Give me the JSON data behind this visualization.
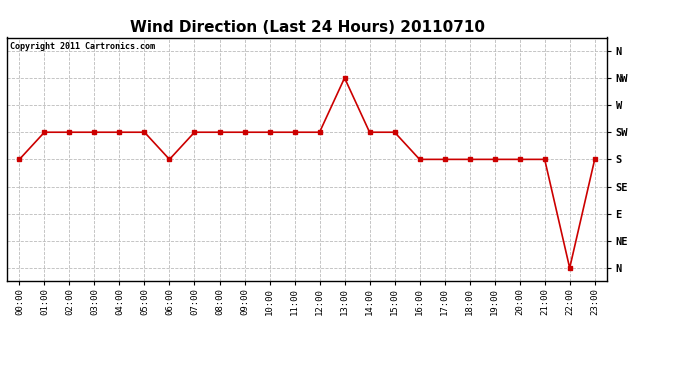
{
  "title": "Wind Direction (Last 24 Hours) 20110710",
  "copyright": "Copyright 2011 Cartronics.com",
  "background_color": "#ffffff",
  "line_color": "#cc0000",
  "grid_color": "#bbbbbb",
  "x_labels": [
    "00:00",
    "01:00",
    "02:00",
    "03:00",
    "04:00",
    "05:00",
    "06:00",
    "07:00",
    "08:00",
    "09:00",
    "10:00",
    "11:00",
    "12:00",
    "13:00",
    "14:00",
    "15:00",
    "16:00",
    "17:00",
    "18:00",
    "19:00",
    "20:00",
    "21:00",
    "22:00",
    "23:00"
  ],
  "y_ticks": [
    360,
    315,
    270,
    225,
    180,
    135,
    90,
    45,
    0
  ],
  "y_labels": [
    "N",
    "NW",
    "W",
    "SW",
    "S",
    "SE",
    "E",
    "NE",
    "N"
  ],
  "y_min": -22,
  "y_max": 382,
  "wind_data": [
    180,
    225,
    225,
    225,
    225,
    225,
    180,
    225,
    225,
    225,
    225,
    225,
    225,
    315,
    225,
    225,
    180,
    180,
    180,
    180,
    180,
    180,
    0,
    180
  ]
}
